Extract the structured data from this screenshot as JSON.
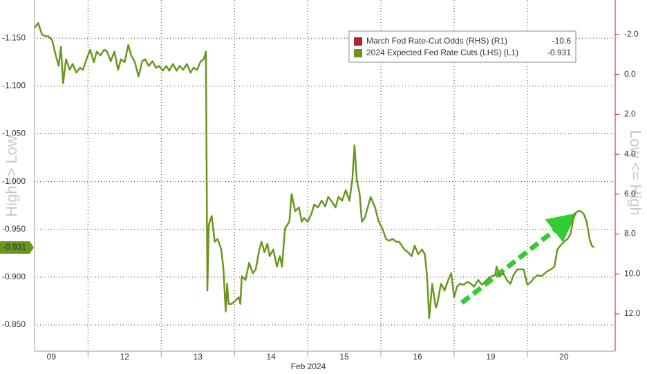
{
  "chart_data": {
    "type": "line",
    "ylabel": "High=> Low",
    "y2label": "Low <= High",
    "xlabel": "Feb 2024",
    "categories": [
      "09",
      "12",
      "13",
      "14",
      "15",
      "16",
      "19",
      "20"
    ],
    "xlim": [
      0.27,
      8.2
    ],
    "ylim": [
      -0.8225,
      -1.19
    ],
    "yticks": [
      {
        "value": -1.15,
        "label": "-1.150"
      },
      {
        "value": -1.1,
        "label": "-1.100"
      },
      {
        "value": -1.05,
        "label": "-1.050"
      },
      {
        "value": -1.0,
        "label": "-1.000"
      },
      {
        "value": -0.95,
        "label": "-0.950"
      },
      {
        "value": -0.9,
        "label": "-0.900"
      },
      {
        "value": -0.85,
        "label": "-0.850"
      }
    ],
    "y2lim": [
      13.87,
      -3.73
    ],
    "y2ticks": [
      {
        "value": -2,
        "label": "-2.0"
      },
      {
        "value": 0,
        "label": "0.0"
      },
      {
        "value": 2,
        "label": "2.0"
      },
      {
        "value": 4,
        "label": "4.0"
      },
      {
        "value": 6,
        "label": "6.0"
      },
      {
        "value": 8,
        "label": "8.0"
      },
      {
        "value": 10,
        "label": "10.0"
      },
      {
        "value": 12,
        "label": "12.0"
      }
    ],
    "grid": true,
    "series": [
      {
        "name": "March Fed Rate-Cut Odds (RHS) (R1)",
        "color": "#b3202e",
        "axis": "y2",
        "x": [],
        "values": [],
        "last_value": -10.6
      },
      {
        "name": "2024 Expected Fed Rate Cuts (LHS) (L1)",
        "color": "#6a961f",
        "last_value": -0.931,
        "x": [
          0.27,
          0.32,
          0.37,
          0.42,
          0.46,
          0.51,
          0.56,
          0.6,
          0.63,
          0.66,
          0.7,
          0.75,
          0.79,
          0.84,
          0.89,
          0.93,
          0.98,
          1.03,
          1.08,
          1.12,
          1.17,
          1.22,
          1.26,
          1.31,
          1.36,
          1.41,
          1.45,
          1.5,
          1.55,
          1.59,
          1.64,
          1.69,
          1.74,
          1.78,
          1.83,
          1.88,
          1.93,
          1.97,
          2.02,
          2.07,
          2.11,
          2.16,
          2.21,
          2.25,
          2.3,
          2.35,
          2.4,
          2.44,
          2.49,
          2.54,
          2.58,
          2.61,
          2.63,
          2.65,
          2.69,
          2.73,
          2.77,
          2.82,
          2.85,
          2.88,
          2.9,
          2.92,
          2.96,
          3.01,
          3.06,
          3.08,
          3.1,
          3.15,
          3.2,
          3.25,
          3.29,
          3.34,
          3.37,
          3.41,
          3.45,
          3.48,
          3.53,
          3.58,
          3.62,
          3.65,
          3.69,
          3.75,
          3.78,
          3.83,
          3.88,
          3.92,
          3.95,
          4.0,
          4.05,
          4.09,
          4.14,
          4.19,
          4.24,
          4.28,
          4.33,
          4.38,
          4.42,
          4.47,
          4.52,
          4.57,
          4.61,
          4.64,
          4.67,
          4.71,
          4.74,
          4.78,
          4.82,
          4.86,
          4.92,
          4.97,
          5.02,
          5.07,
          5.11,
          5.16,
          5.21,
          5.25,
          5.32,
          5.37,
          5.42,
          5.46,
          5.51,
          5.56,
          5.6,
          5.63,
          5.66,
          5.7,
          5.75,
          5.77,
          5.82,
          5.87,
          5.92,
          5.96,
          6.0,
          6.04,
          6.08,
          6.13,
          6.18,
          6.23,
          6.27,
          6.33,
          6.38,
          6.42,
          6.47,
          6.52,
          6.56,
          6.58,
          6.62,
          6.67,
          6.72,
          6.77,
          6.81,
          6.86,
          6.91,
          6.95,
          7.0,
          7.05,
          7.09,
          7.14,
          7.19,
          7.24,
          7.27,
          7.32,
          7.37,
          7.41,
          7.45,
          7.5,
          7.55,
          7.59,
          7.64,
          7.69,
          7.73,
          7.77,
          7.81,
          7.85,
          7.88,
          7.91
        ],
        "values": [
          -1.161,
          -1.166,
          -1.154,
          -1.152,
          -1.152,
          -1.148,
          -1.132,
          -1.121,
          -1.141,
          -1.103,
          -1.128,
          -1.117,
          -1.123,
          -1.114,
          -1.119,
          -1.117,
          -1.128,
          -1.138,
          -1.125,
          -1.136,
          -1.132,
          -1.138,
          -1.136,
          -1.126,
          -1.136,
          -1.117,
          -1.128,
          -1.125,
          -1.143,
          -1.132,
          -1.125,
          -1.11,
          -1.126,
          -1.128,
          -1.121,
          -1.126,
          -1.119,
          -1.121,
          -1.116,
          -1.121,
          -1.116,
          -1.123,
          -1.116,
          -1.121,
          -1.117,
          -1.123,
          -1.114,
          -1.119,
          -1.117,
          -1.126,
          -1.128,
          -1.136,
          -0.886,
          -0.955,
          -0.964,
          -0.937,
          -0.94,
          -0.929,
          -0.908,
          -0.864,
          -0.893,
          -0.872,
          -0.872,
          -0.875,
          -0.879,
          -0.872,
          -0.901,
          -0.897,
          -0.915,
          -0.904,
          -0.908,
          -0.929,
          -0.937,
          -0.926,
          -0.935,
          -0.922,
          -0.929,
          -0.911,
          -0.922,
          -0.911,
          -0.951,
          -0.958,
          -0.987,
          -0.969,
          -0.973,
          -0.958,
          -0.962,
          -0.958,
          -0.966,
          -0.976,
          -0.973,
          -0.98,
          -0.974,
          -0.984,
          -0.979,
          -0.973,
          -0.984,
          -0.98,
          -0.991,
          -0.98,
          -1.002,
          -1.038,
          -1.002,
          -0.987,
          -0.958,
          -0.962,
          -0.973,
          -0.984,
          -0.973,
          -0.958,
          -0.951,
          -0.94,
          -0.938,
          -0.94,
          -0.937,
          -0.937,
          -0.929,
          -0.926,
          -0.922,
          -0.933,
          -0.924,
          -0.929,
          -0.924,
          -0.901,
          -0.857,
          -0.893,
          -0.868,
          -0.872,
          -0.893,
          -0.886,
          -0.897,
          -0.904,
          -0.879,
          -0.89,
          -0.893,
          -0.892,
          -0.895,
          -0.893,
          -0.89,
          -0.897,
          -0.892,
          -0.895,
          -0.899,
          -0.901,
          -0.902,
          -0.911,
          -0.901,
          -0.904,
          -0.897,
          -0.893,
          -0.902,
          -0.908,
          -0.908,
          -0.908,
          -0.892,
          -0.895,
          -0.899,
          -0.902,
          -0.901,
          -0.904,
          -0.906,
          -0.908,
          -0.911,
          -0.929,
          -0.933,
          -0.937,
          -0.94,
          -0.945,
          -0.966,
          -0.969,
          -0.969,
          -0.966,
          -0.958,
          -0.94,
          -0.933,
          -0.931
        ]
      }
    ]
  }
}
